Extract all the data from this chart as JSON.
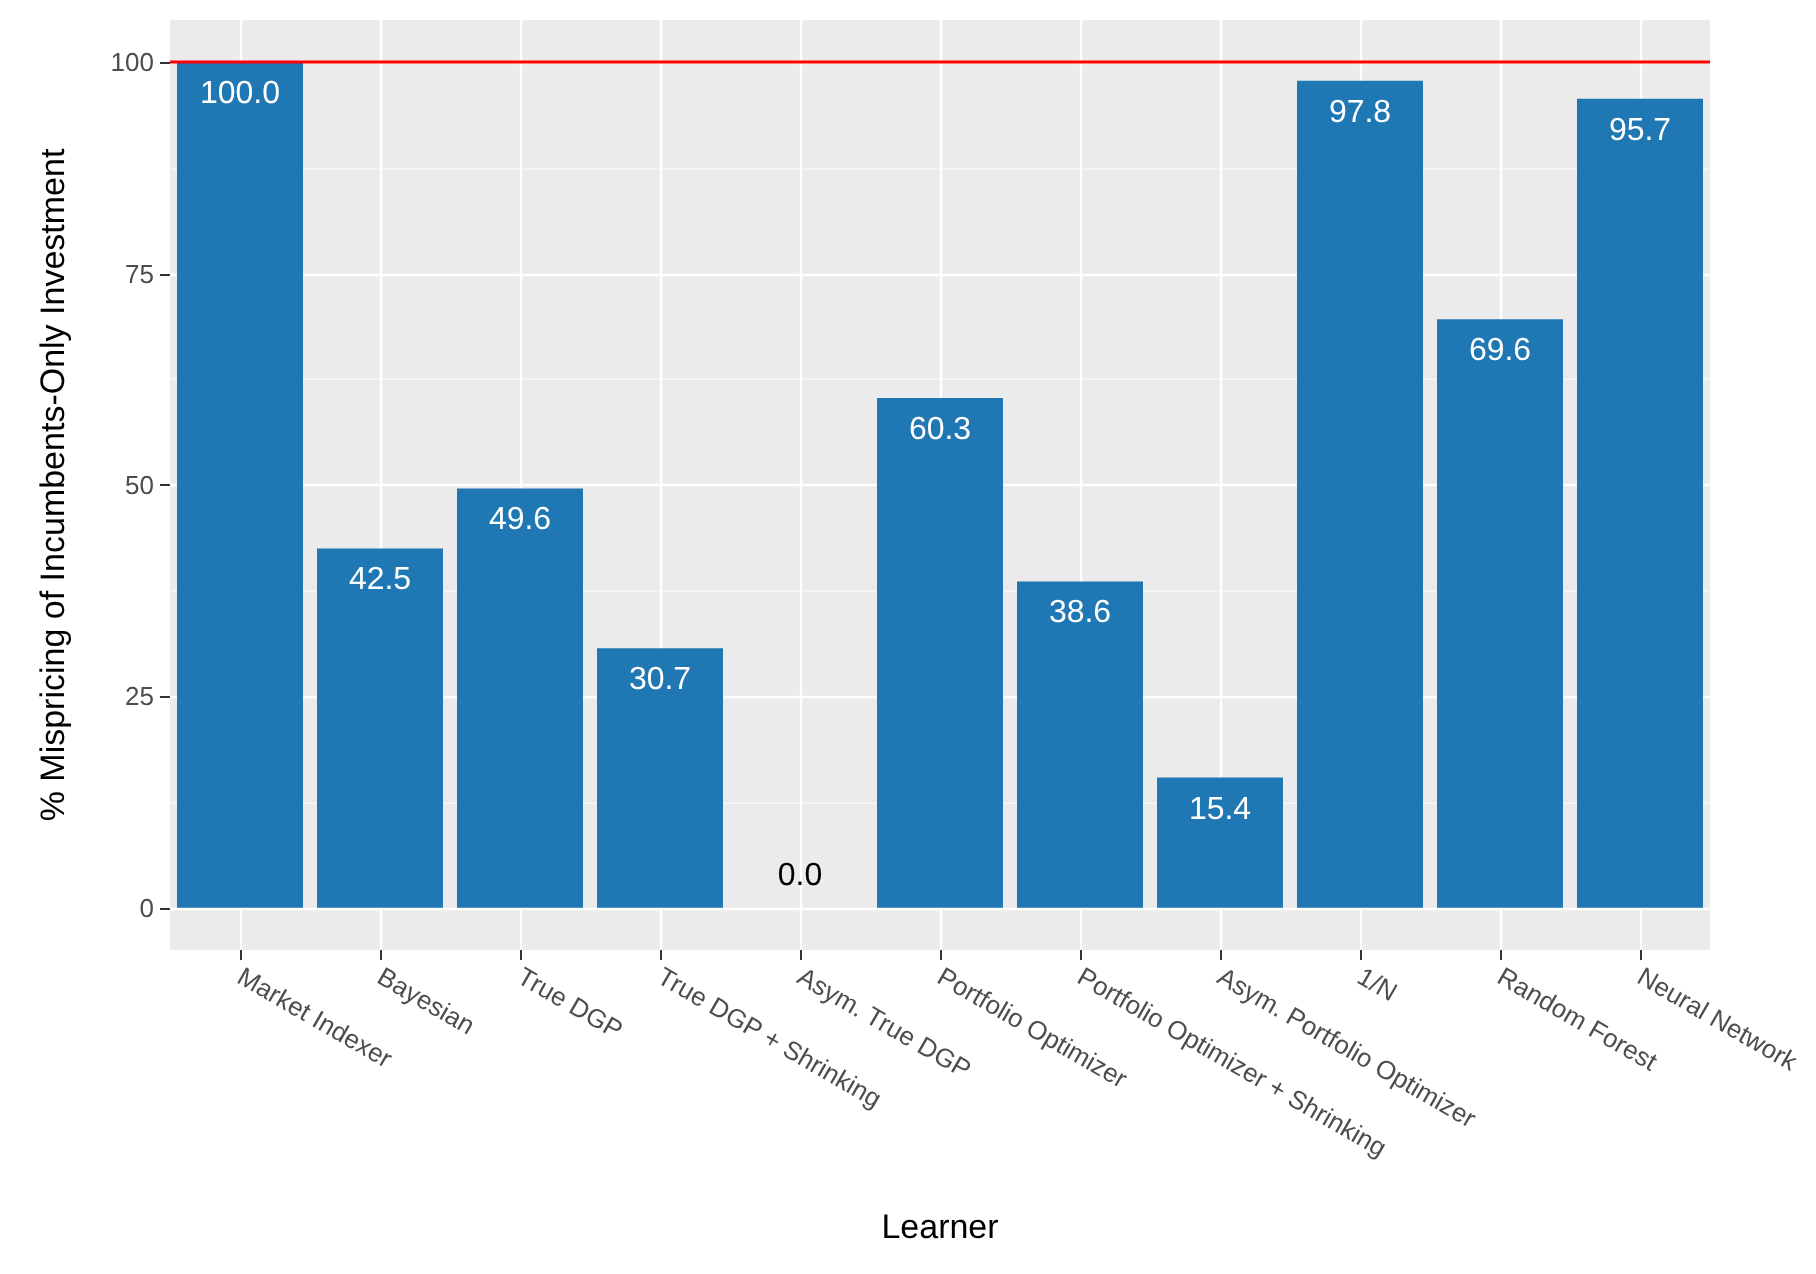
{
  "chart_data": {
    "type": "bar",
    "xlabel": "Learner",
    "ylabel": "% Mispricing of Incumbents-Only Investment",
    "categories": [
      "Market Indexer",
      "Bayesian",
      "True DGP",
      "True DGP + Shrinking",
      "Asym. True DGP",
      "Portfolio Optimizer",
      "Portfolio Optimizer + Shrinking",
      "Asym. Portfolio Optimizer",
      "1/N",
      "Random Forest",
      "Neural Network"
    ],
    "values": [
      100.0,
      42.5,
      49.6,
      30.7,
      0.0,
      60.3,
      38.6,
      15.4,
      97.8,
      69.6,
      95.7
    ],
    "value_labels": [
      "100.0",
      "42.5",
      "49.6",
      "30.7",
      "0.0",
      "60.3",
      "38.6",
      "15.4",
      "97.8",
      "69.6",
      "95.7"
    ],
    "color": "#1f77b4",
    "ylim": [
      -5,
      105
    ],
    "yticks": [
      0,
      25,
      50,
      75,
      100
    ],
    "grid": true,
    "ref_lines": [
      {
        "axis": "y",
        "value": 100,
        "label": null,
        "color": "#ff0000"
      }
    ]
  }
}
